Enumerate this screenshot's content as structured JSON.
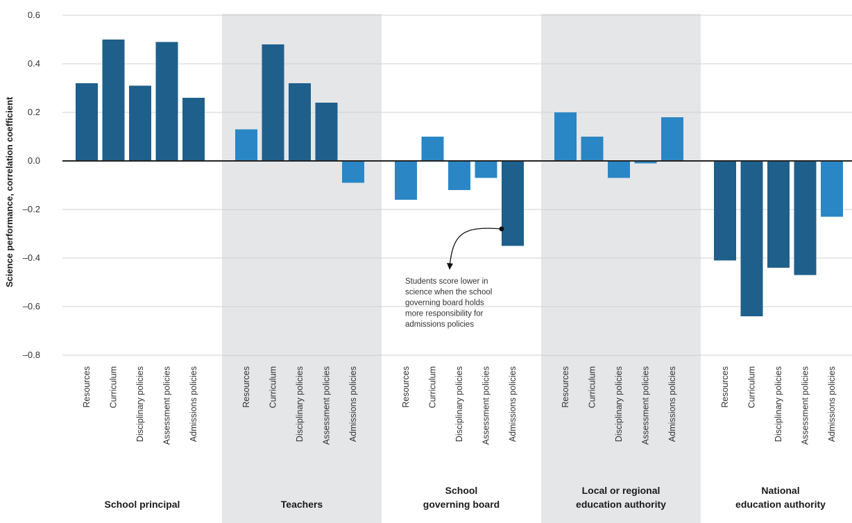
{
  "chart_data": {
    "type": "bar",
    "title": "",
    "ylabel": "Science performance, correlation coefficient",
    "xlabel": "",
    "ylim": [
      -0.8,
      0.6
    ],
    "yticks": [
      0.6,
      0.4,
      0.2,
      0.0,
      -0.2,
      -0.4,
      -0.6,
      -0.8
    ],
    "ytick_labels": [
      "0.6",
      "0.4",
      "0.2",
      "0.0",
      "–0.2",
      "–0.4",
      "–0.6",
      "–0.8"
    ],
    "grid": true,
    "categories": [
      "Resources",
      "Curriculum",
      "Disciplinary policies",
      "Assessment policies",
      "Admissions policies"
    ],
    "groups": [
      {
        "label_lines": [
          "School principal"
        ],
        "values": [
          0.32,
          0.5,
          0.31,
          0.49,
          0.26
        ],
        "significant": [
          true,
          true,
          true,
          true,
          true
        ]
      },
      {
        "label_lines": [
          "Teachers"
        ],
        "values": [
          0.13,
          0.48,
          0.32,
          0.24,
          -0.09
        ],
        "significant": [
          false,
          true,
          true,
          true,
          false
        ]
      },
      {
        "label_lines": [
          "School",
          "governing board"
        ],
        "values": [
          -0.16,
          0.1,
          -0.12,
          -0.07,
          -0.35
        ],
        "significant": [
          false,
          false,
          false,
          false,
          true
        ]
      },
      {
        "label_lines": [
          "Local or regional",
          "education authority"
        ],
        "values": [
          0.2,
          0.1,
          -0.07,
          -0.01,
          0.18
        ],
        "significant": [
          false,
          false,
          false,
          false,
          false
        ]
      },
      {
        "label_lines": [
          "National",
          "education authority"
        ],
        "values": [
          -0.41,
          -0.64,
          -0.44,
          -0.47,
          -0.23
        ],
        "significant": [
          true,
          true,
          true,
          true,
          false
        ]
      }
    ],
    "annotation": {
      "group": 2,
      "category": 4,
      "lines": [
        "Students score lower in",
        "science when the school",
        "governing board holds",
        "more responsibility for",
        "admissions policies"
      ]
    }
  },
  "colors": {
    "significant": "#1f5f8b",
    "not_significant": "#2b86c5",
    "band": "#e5e6e8",
    "grid": "#d0d0d0",
    "zero_line": "#222222"
  }
}
